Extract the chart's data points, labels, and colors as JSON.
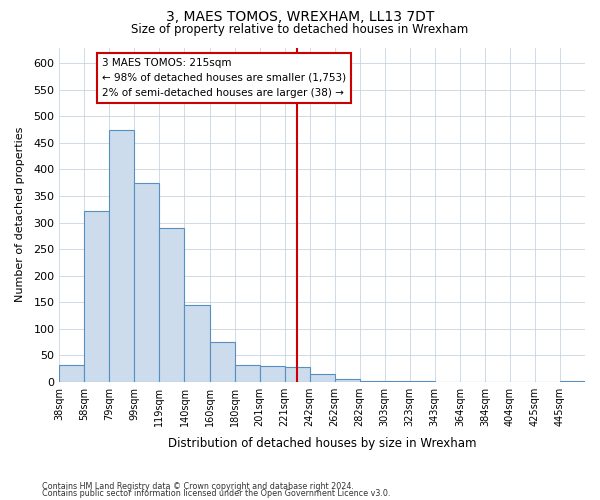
{
  "title": "3, MAES TOMOS, WREXHAM, LL13 7DT",
  "subtitle": "Size of property relative to detached houses in Wrexham",
  "xlabel": "Distribution of detached houses by size in Wrexham",
  "ylabel": "Number of detached properties",
  "bar_labels": [
    "38sqm",
    "58sqm",
    "79sqm",
    "99sqm",
    "119sqm",
    "140sqm",
    "160sqm",
    "180sqm",
    "201sqm",
    "221sqm",
    "242sqm",
    "262sqm",
    "282sqm",
    "303sqm",
    "323sqm",
    "343sqm",
    "364sqm",
    "384sqm",
    "404sqm",
    "425sqm",
    "445sqm"
  ],
  "bar_values": [
    32,
    322,
    475,
    375,
    290,
    145,
    75,
    32,
    30,
    28,
    15,
    5,
    2,
    1,
    1,
    0,
    0,
    0,
    0,
    0,
    2
  ],
  "bar_color": "#ccdcec",
  "bar_edge_color": "#5590c0",
  "marker_color": "#cc0000",
  "marker_index": 9,
  "annotation_title": "3 MAES TOMOS: 215sqm",
  "annotation_line1": "← 98% of detached houses are smaller (1,753)",
  "annotation_line2": "2% of semi-detached houses are larger (38) →",
  "annotation_box_color": "#cc0000",
  "ylim": [
    0,
    630
  ],
  "ytick_interval": 50,
  "footer_line1": "Contains HM Land Registry data © Crown copyright and database right 2024.",
  "footer_line2": "Contains public sector information licensed under the Open Government Licence v3.0.",
  "background_color": "#ffffff",
  "grid_color": "#c8d4e0"
}
